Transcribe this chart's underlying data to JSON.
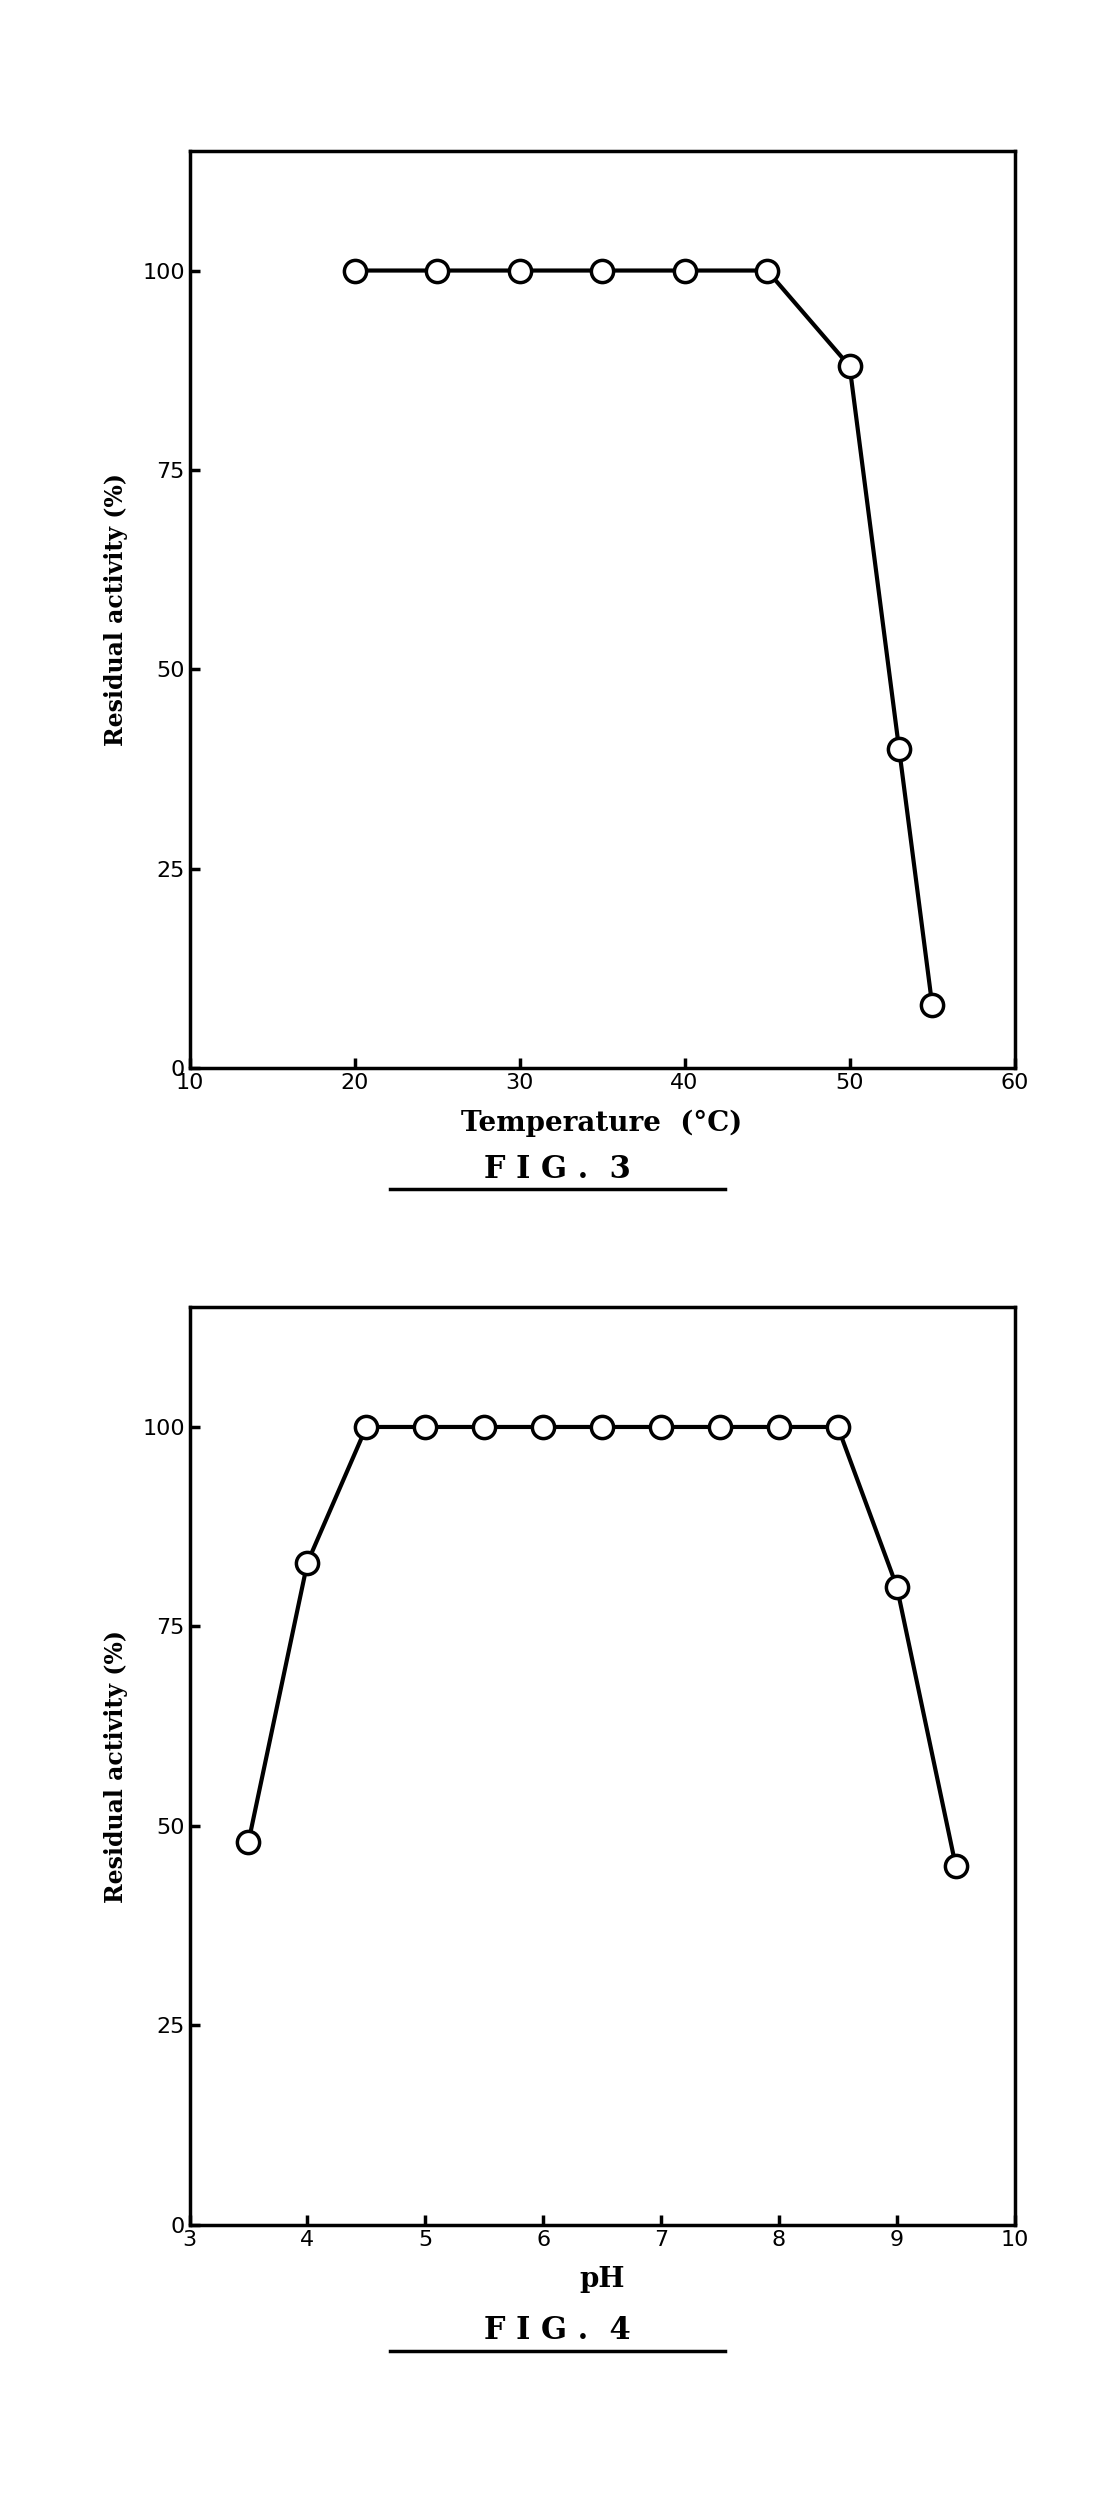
{
  "fig3": {
    "x": [
      20,
      25,
      30,
      35,
      40,
      45,
      50,
      53,
      55
    ],
    "y": [
      100,
      100,
      100,
      100,
      100,
      100,
      88,
      40,
      8
    ],
    "xlim": [
      10,
      60
    ],
    "ylim": [
      0,
      115
    ],
    "xticks": [
      10,
      20,
      30,
      40,
      50,
      60
    ],
    "yticks": [
      0,
      25,
      50,
      75,
      100
    ],
    "xlabel": "Temperature  (°C)",
    "ylabel": "Residual activity (%)",
    "caption": "F I G .  3"
  },
  "fig4": {
    "x": [
      3.5,
      4.0,
      4.5,
      5.0,
      5.5,
      6.0,
      6.5,
      7.0,
      7.5,
      8.0,
      8.5,
      9.0,
      9.5
    ],
    "y": [
      48,
      83,
      100,
      100,
      100,
      100,
      100,
      100,
      100,
      100,
      100,
      80,
      45
    ],
    "xlim": [
      3,
      10
    ],
    "ylim": [
      0,
      115
    ],
    "xticks": [
      3,
      4,
      5,
      6,
      7,
      8,
      9,
      10
    ],
    "yticks": [
      0,
      25,
      50,
      75,
      100
    ],
    "xlabel": "pH",
    "ylabel": "Residual activity (%)",
    "caption": "F I G .  4"
  },
  "line_color": "#000000",
  "marker_facecolor": "#ffffff",
  "marker_edgecolor": "#000000",
  "marker_size": 16,
  "line_width": 3.0,
  "marker_linewidth": 2.5
}
